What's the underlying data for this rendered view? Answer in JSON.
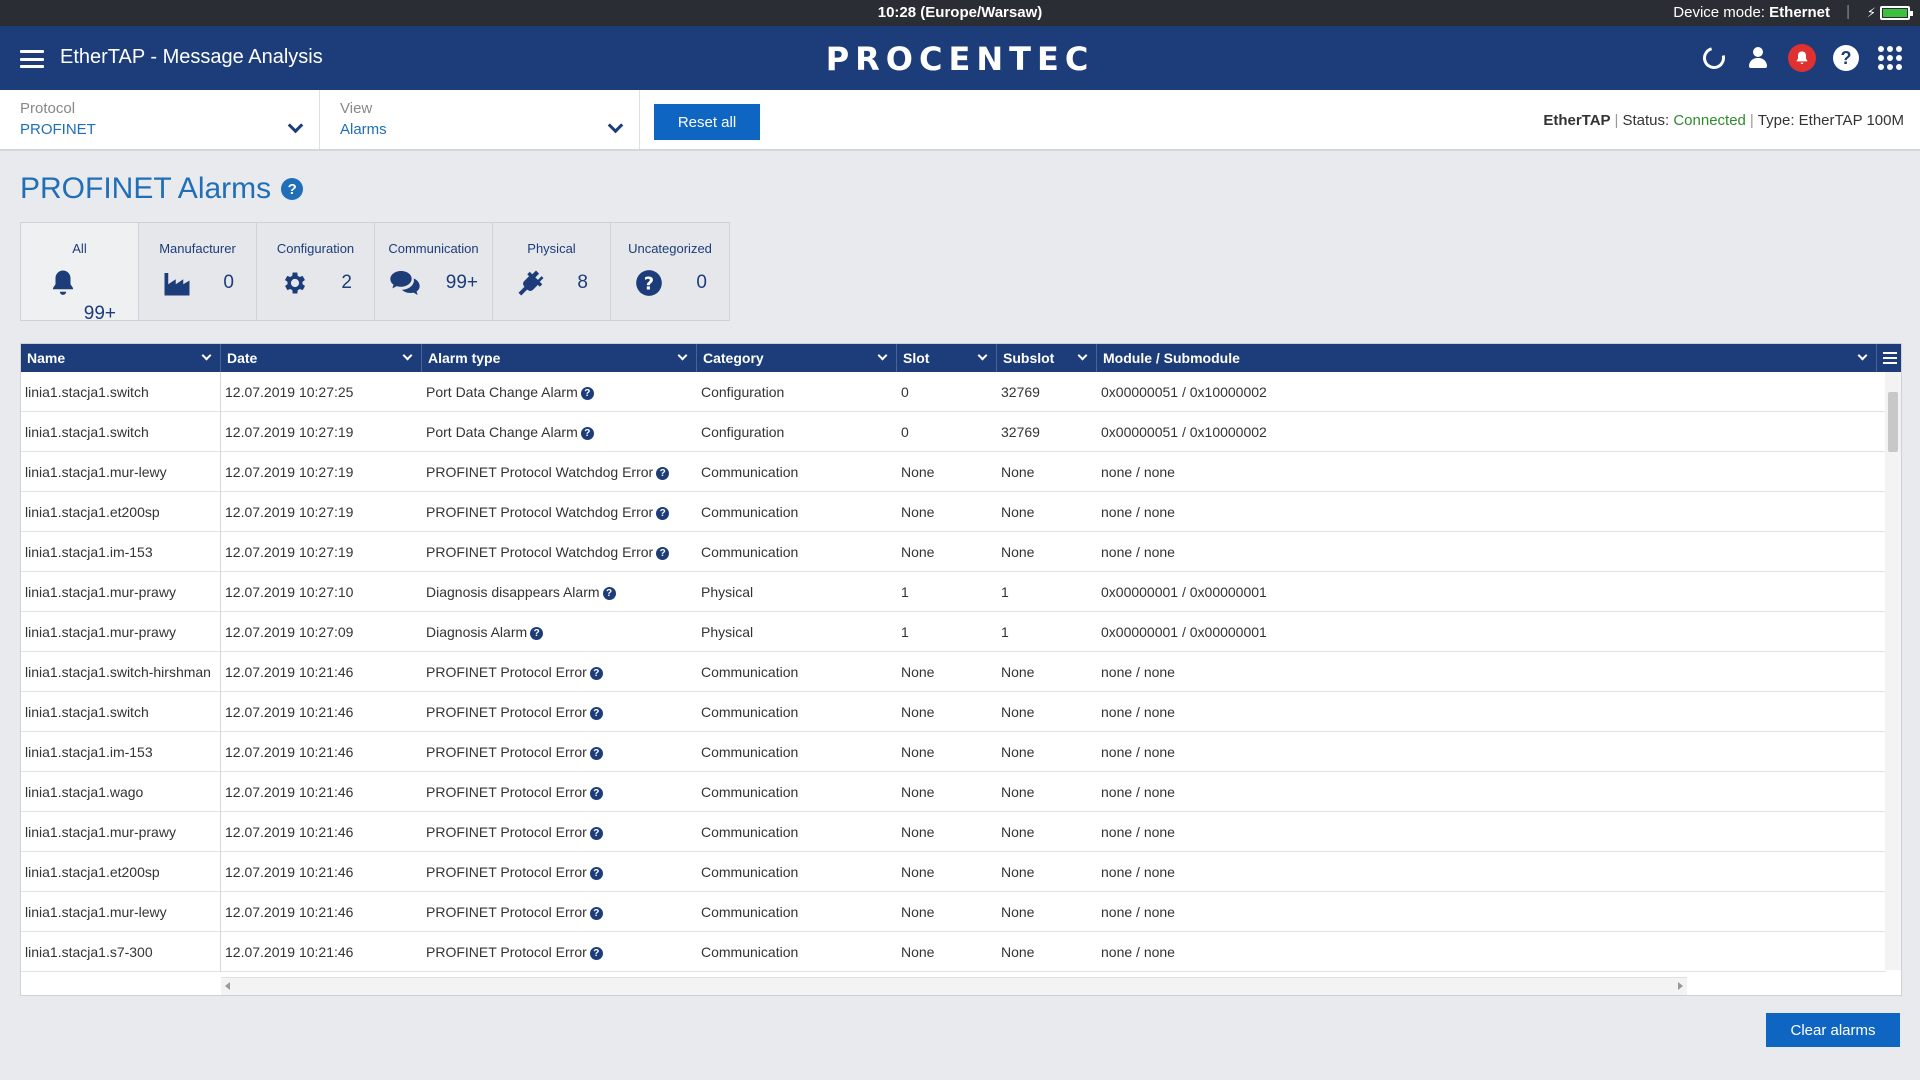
{
  "sysbar": {
    "time": "10:28 (Europe/Warsaw)",
    "mode_label": "Device mode:",
    "mode_value": "Ethernet"
  },
  "header": {
    "title": "EtherTAP - Message Analysis",
    "logo": "PROCENTEC"
  },
  "filters": {
    "protocol_label": "Protocol",
    "protocol_value": "PROFINET",
    "view_label": "View",
    "view_value": "Alarms",
    "reset_label": "Reset all"
  },
  "status": {
    "device": "EtherTAP",
    "status_label": "Status:",
    "status_value": "Connected",
    "type_label": "Type:",
    "type_value": "EtherTAP 100M",
    "status_color": "#2e8b2e"
  },
  "page": {
    "title": "PROFINET Alarms"
  },
  "categories": [
    {
      "title": "All",
      "icon": "bell-icon",
      "count": "99+"
    },
    {
      "title": "Manufacturer",
      "icon": "factory-icon",
      "count": "0"
    },
    {
      "title": "Configuration",
      "icon": "gear-icon",
      "count": "2"
    },
    {
      "title": "Communication",
      "icon": "chat-icon",
      "count": "99+"
    },
    {
      "title": "Physical",
      "icon": "plug-icon",
      "count": "8"
    },
    {
      "title": "Uncategorized",
      "icon": "question-icon",
      "count": "0"
    }
  ],
  "table": {
    "columns": [
      "Name",
      "Date",
      "Alarm type",
      "Category",
      "Slot",
      "Subslot",
      "Module / Submodule"
    ],
    "rows": [
      [
        "linia1.stacja1.switch",
        "12.07.2019 10:27:25",
        "Port Data Change Alarm",
        "Configuration",
        "0",
        "32769",
        "0x00000051 / 0x10000002"
      ],
      [
        "linia1.stacja1.switch",
        "12.07.2019 10:27:19",
        "Port Data Change Alarm",
        "Configuration",
        "0",
        "32769",
        "0x00000051 / 0x10000002"
      ],
      [
        "linia1.stacja1.mur-lewy",
        "12.07.2019 10:27:19",
        "PROFINET Protocol Watchdog Error",
        "Communication",
        "None",
        "None",
        "none / none"
      ],
      [
        "linia1.stacja1.et200sp",
        "12.07.2019 10:27:19",
        "PROFINET Protocol Watchdog Error",
        "Communication",
        "None",
        "None",
        "none / none"
      ],
      [
        "linia1.stacja1.im-153",
        "12.07.2019 10:27:19",
        "PROFINET Protocol Watchdog Error",
        "Communication",
        "None",
        "None",
        "none / none"
      ],
      [
        "linia1.stacja1.mur-prawy",
        "12.07.2019 10:27:10",
        "Diagnosis disappears Alarm",
        "Physical",
        "1",
        "1",
        "0x00000001 / 0x00000001"
      ],
      [
        "linia1.stacja1.mur-prawy",
        "12.07.2019 10:27:09",
        "Diagnosis Alarm",
        "Physical",
        "1",
        "1",
        "0x00000001 / 0x00000001"
      ],
      [
        "linia1.stacja1.switch-hirshman",
        "12.07.2019 10:21:46",
        "PROFINET Protocol Error",
        "Communication",
        "None",
        "None",
        "none / none"
      ],
      [
        "linia1.stacja1.switch",
        "12.07.2019 10:21:46",
        "PROFINET Protocol Error",
        "Communication",
        "None",
        "None",
        "none / none"
      ],
      [
        "linia1.stacja1.im-153",
        "12.07.2019 10:21:46",
        "PROFINET Protocol Error",
        "Communication",
        "None",
        "None",
        "none / none"
      ],
      [
        "linia1.stacja1.wago",
        "12.07.2019 10:21:46",
        "PROFINET Protocol Error",
        "Communication",
        "None",
        "None",
        "none / none"
      ],
      [
        "linia1.stacja1.mur-prawy",
        "12.07.2019 10:21:46",
        "PROFINET Protocol Error",
        "Communication",
        "None",
        "None",
        "none / none"
      ],
      [
        "linia1.stacja1.et200sp",
        "12.07.2019 10:21:46",
        "PROFINET Protocol Error",
        "Communication",
        "None",
        "None",
        "none / none"
      ],
      [
        "linia1.stacja1.mur-lewy",
        "12.07.2019 10:21:46",
        "PROFINET Protocol Error",
        "Communication",
        "None",
        "None",
        "none / none"
      ],
      [
        "linia1.stacja1.s7-300",
        "12.07.2019 10:21:46",
        "PROFINET Protocol Error",
        "Communication",
        "None",
        "None",
        "none / none"
      ]
    ]
  },
  "footer": {
    "clear_label": "Clear alarms"
  },
  "colors": {
    "header_bg": "#1c3d7a",
    "accent": "#0f66c2",
    "link": "#1f6fb8",
    "alert": "#e03131"
  }
}
